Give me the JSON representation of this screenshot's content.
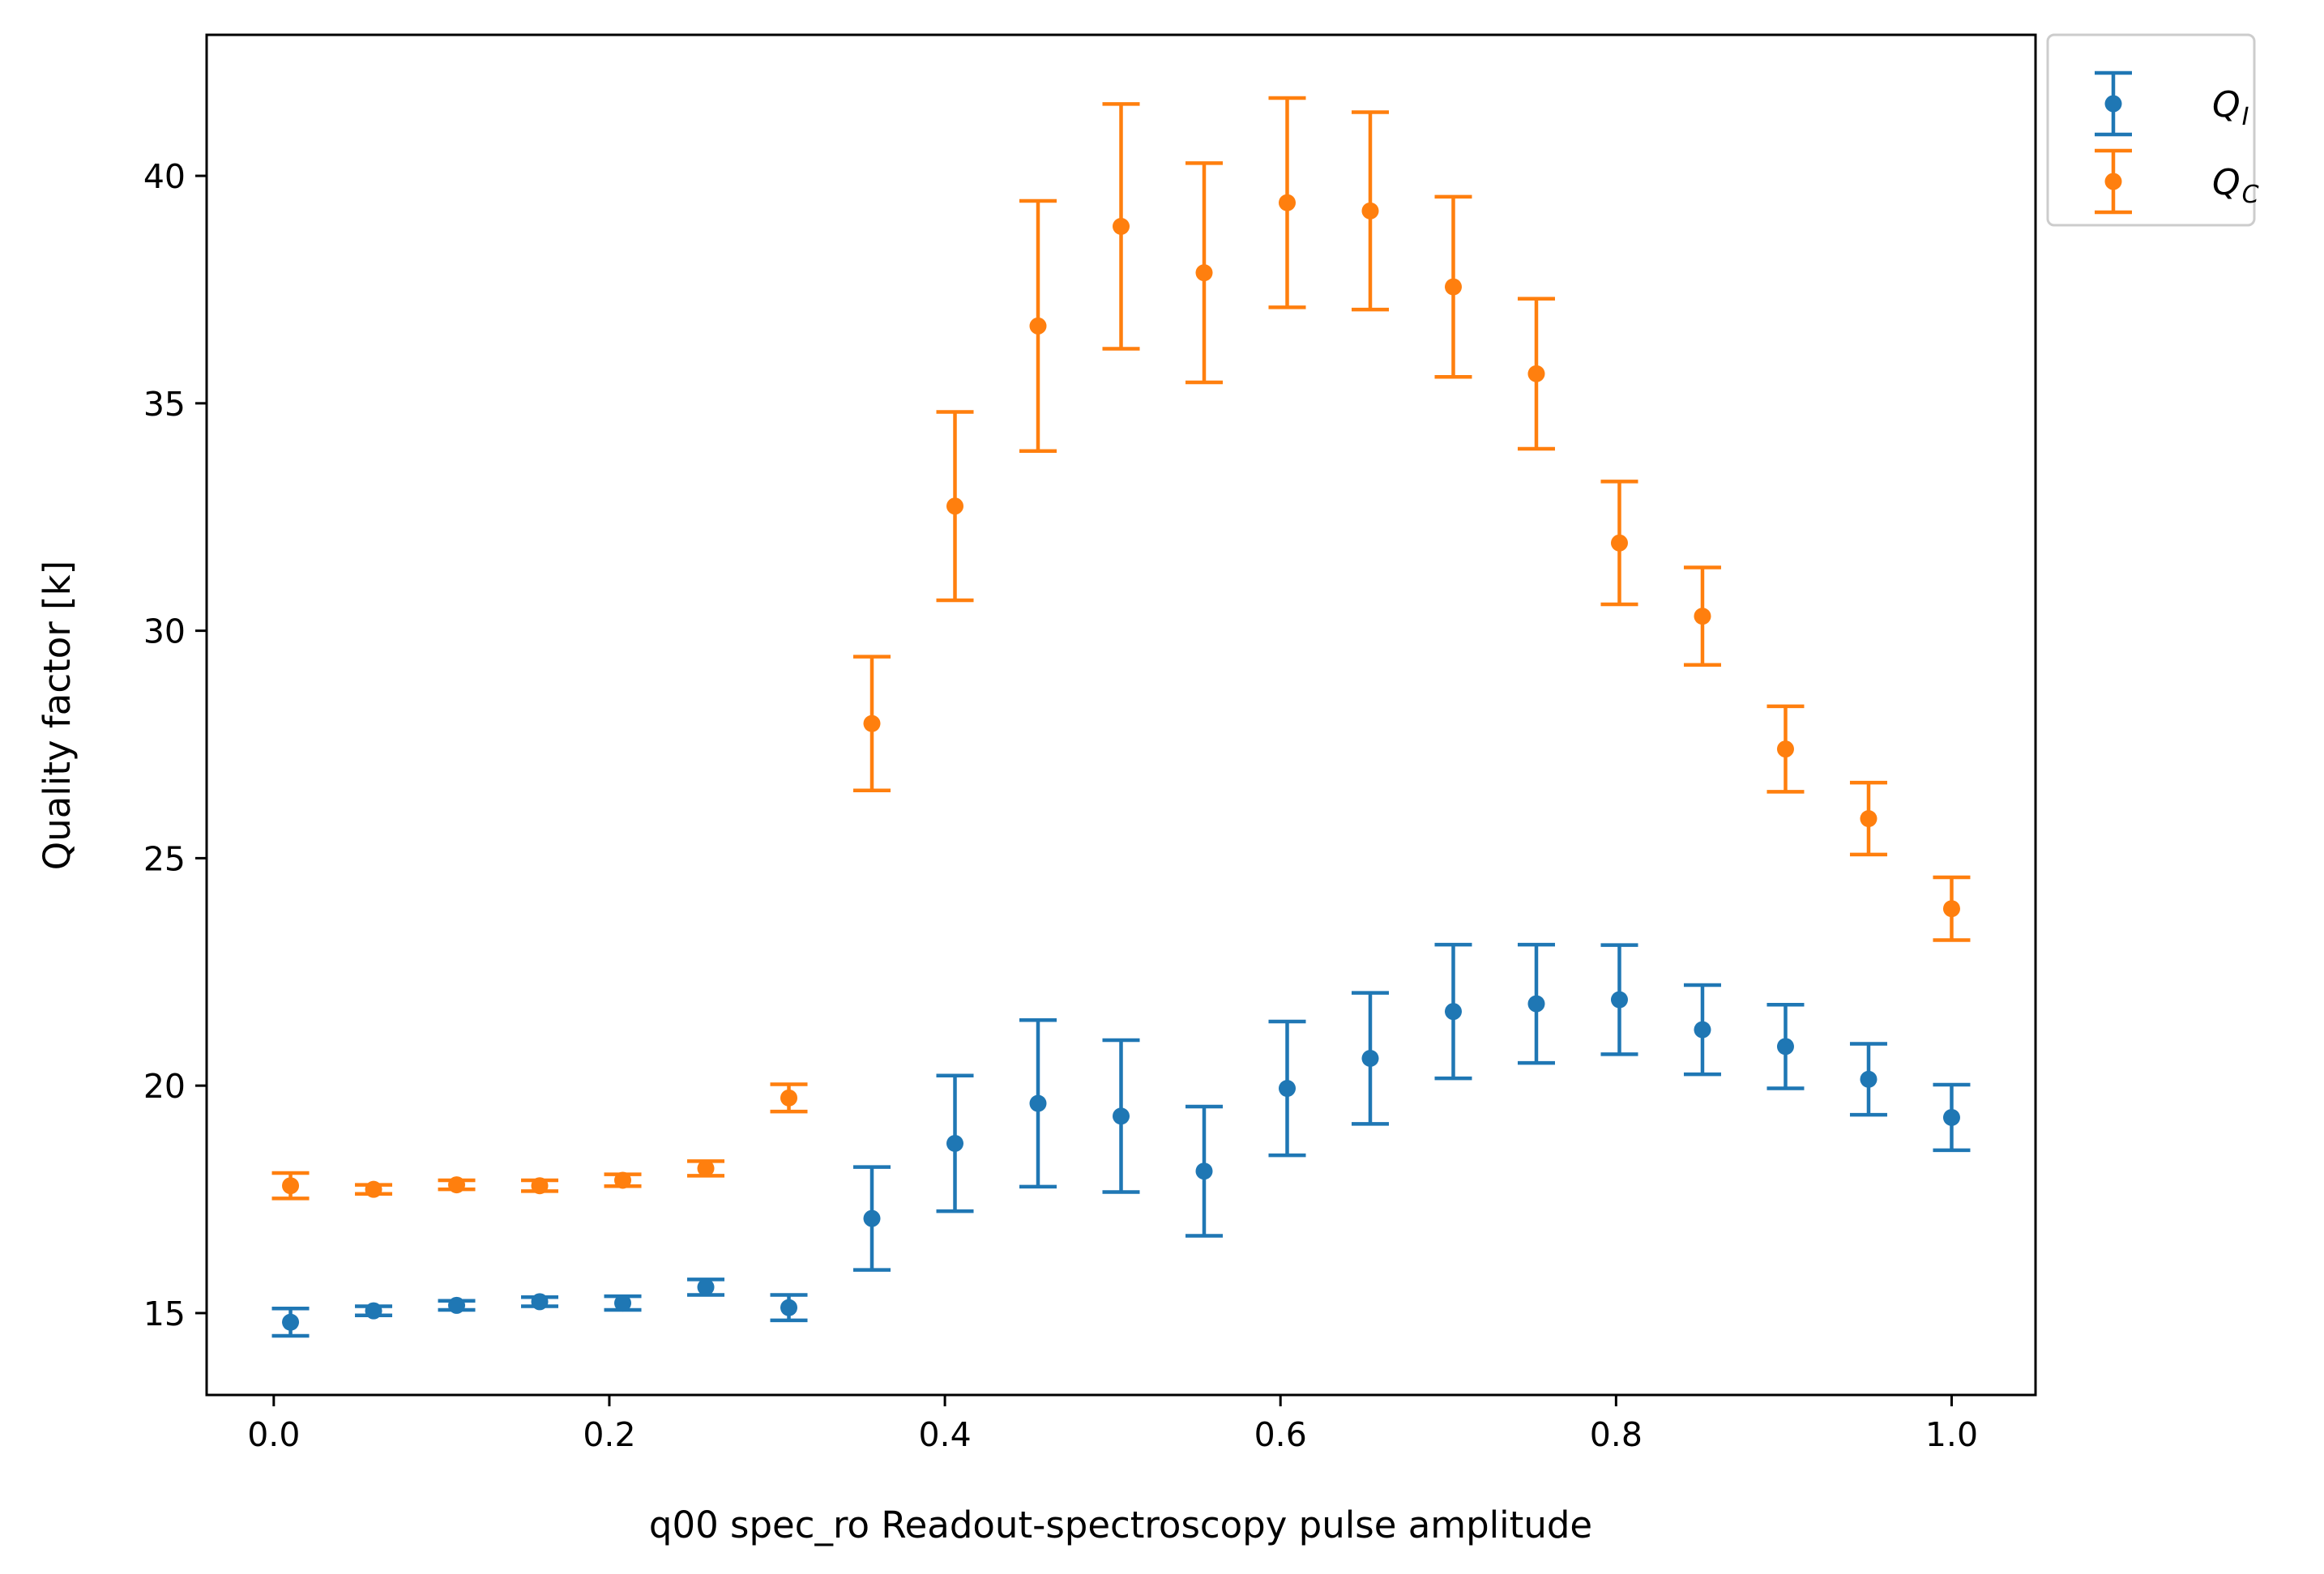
{
  "chart_data": {
    "type": "scatter",
    "xlabel": "q00 spec_ro Readout-spectroscopy pulse amplitude",
    "ylabel": "Quality factor [k]",
    "xlim": [
      -0.04,
      1.05
    ],
    "ylim": [
      13.2,
      43.1
    ],
    "x_ticks": [
      0.0,
      0.2,
      0.4,
      0.6,
      0.8,
      1.0
    ],
    "x_tick_labels": [
      "0.0",
      "0.2",
      "0.4",
      "0.6",
      "0.8",
      "1.0"
    ],
    "y_ticks": [
      15,
      20,
      25,
      30,
      35,
      40
    ],
    "y_tick_labels": [
      "15",
      "20",
      "25",
      "30",
      "35",
      "40"
    ],
    "grid": false,
    "legend_position": "outside top-right",
    "x": [
      0.01,
      0.0595,
      0.109,
      0.1585,
      0.208,
      0.2575,
      0.307,
      0.3565,
      0.406,
      0.4555,
      0.505,
      0.5545,
      0.604,
      0.6535,
      0.703,
      0.7525,
      0.802,
      0.8515,
      0.901,
      0.9505,
      1.0
    ],
    "series": [
      {
        "name": "Q",
        "name_sub": "I",
        "color": "#1f77b4",
        "values": [
          14.8,
          15.05,
          15.17,
          15.25,
          15.22,
          15.57,
          15.12,
          17.08,
          18.73,
          19.61,
          19.33,
          18.12,
          19.94,
          20.6,
          21.63,
          21.8,
          21.89,
          21.23,
          20.86,
          20.14,
          19.3
        ],
        "errors": [
          0.3,
          0.1,
          0.1,
          0.1,
          0.15,
          0.17,
          0.28,
          1.13,
          1.49,
          1.83,
          1.67,
          1.42,
          1.47,
          1.44,
          1.47,
          1.3,
          1.2,
          0.98,
          0.92,
          0.78,
          0.72
        ]
      },
      {
        "name": "Q",
        "name_sub": "C",
        "color": "#ff7f0e",
        "values": [
          17.8,
          17.72,
          17.82,
          17.8,
          17.92,
          18.18,
          19.73,
          27.96,
          32.74,
          36.7,
          38.89,
          37.87,
          39.41,
          39.23,
          37.56,
          35.65,
          31.93,
          30.32,
          27.4,
          25.87,
          23.89
        ],
        "errors": [
          0.28,
          0.1,
          0.1,
          0.12,
          0.13,
          0.16,
          0.3,
          1.47,
          2.07,
          2.75,
          2.69,
          2.41,
          2.3,
          2.17,
          1.98,
          1.65,
          1.35,
          1.07,
          0.94,
          0.79,
          0.69
        ]
      }
    ]
  }
}
